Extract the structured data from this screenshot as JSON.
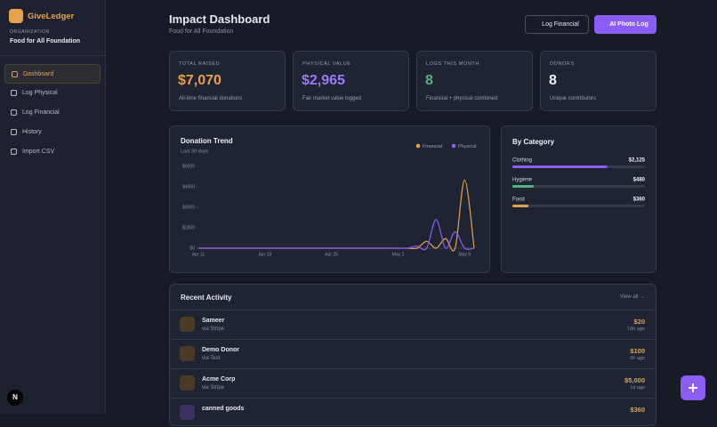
{
  "sidebar": {
    "brand": "GiveLedger",
    "org_label": "ORGANIZATION",
    "org_name": "Food for All Foundation",
    "nav": [
      "Dashboard",
      "Log Physical",
      "Log Financial",
      "History",
      "Import CSV"
    ],
    "badge": "N"
  },
  "header": {
    "title": "Impact Dashboard",
    "subtitle": "Food for All Foundation",
    "buttons": [
      "Log Financial",
      "AI Photo Log"
    ]
  },
  "stats": [
    {
      "label": "TOTAL RAISED",
      "value": "$7,070",
      "note": "All-time financial donations"
    },
    {
      "label": "PHYSICAL VALUE",
      "value": "$2,965",
      "note": "Fair market value logged"
    },
    {
      "label": "LOGS THIS MONTH",
      "value": "8",
      "note": "Financial + physical combined"
    },
    {
      "label": "DONORS",
      "value": "8",
      "note": "Unique contributors"
    }
  ],
  "chart_data": [
    {
      "type": "line",
      "title": "Donation Trend",
      "subtitle": "Last 30 days",
      "categories": [
        "Apr 11",
        null,
        null,
        null,
        null,
        null,
        null,
        "Apr 18",
        null,
        null,
        null,
        null,
        null,
        null,
        "Apr 25",
        null,
        null,
        null,
        null,
        null,
        null,
        "May 2",
        null,
        null,
        null,
        null,
        null,
        null,
        "May 9",
        null
      ],
      "series": [
        {
          "name": "Financial",
          "color": "#e9a04b",
          "values": [
            0,
            0,
            0,
            0,
            0,
            0,
            0,
            0,
            0,
            0,
            0,
            0,
            0,
            0,
            0,
            0,
            0,
            0,
            0,
            0,
            0,
            0,
            0,
            0,
            500,
            0,
            700,
            0,
            5000,
            0
          ]
        },
        {
          "name": "Physical",
          "color": "#8b5cf6",
          "values": [
            0,
            0,
            0,
            0,
            0,
            0,
            0,
            0,
            0,
            0,
            0,
            0,
            0,
            0,
            0,
            0,
            0,
            0,
            0,
            0,
            0,
            0,
            0,
            150,
            0,
            2100,
            0,
            1200,
            0,
            0
          ]
        }
      ],
      "ylim": [
        0,
        6000
      ],
      "yticks": [
        {
          "value": 0,
          "label": "$0"
        },
        {
          "value": 1500,
          "label": "$1500"
        },
        {
          "value": 3000,
          "label": "$3000"
        },
        {
          "value": 4500,
          "label": "$4500"
        },
        {
          "value": 6000,
          "label": "$6000"
        }
      ],
      "legend": "top-right"
    },
    {
      "type": "bar",
      "title": "By Category",
      "categories": [
        "Clothing",
        "Hygiene",
        "Food"
      ],
      "values": [
        2125,
        480,
        360
      ],
      "value_labels": [
        "$2,125",
        "$480",
        "$360"
      ],
      "colors": [
        "#8b5cf6",
        "#4fb37e",
        "#e9a04b"
      ],
      "xlim": [
        0,
        2965
      ]
    }
  ],
  "activity": {
    "title": "Recent Activity",
    "link": "View all →",
    "rows": [
      {
        "name": "Sameer",
        "source": "via Stripe",
        "amount": "$20",
        "time": "16h ago"
      },
      {
        "name": "Demo Donor",
        "source": "via Test",
        "amount": "$100",
        "time": "9h ago"
      },
      {
        "name": "Acme Corp",
        "source": "via Stripe",
        "amount": "$5,000",
        "time": "1d ago"
      },
      {
        "name": "canned goods",
        "source": "",
        "amount": "$360",
        "time": ""
      }
    ]
  }
}
